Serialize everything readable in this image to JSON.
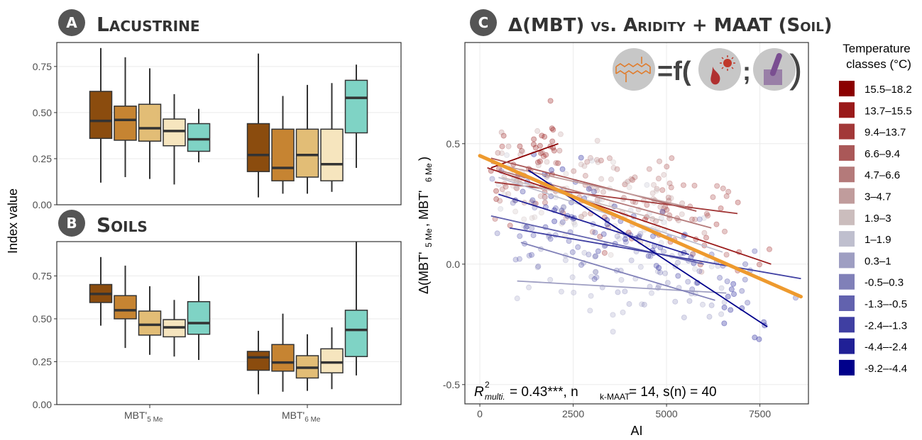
{
  "panels": {
    "A": {
      "badge": "A",
      "title": "Lacustrine"
    },
    "B": {
      "badge": "B",
      "title": "Soils"
    },
    "C": {
      "badge": "C",
      "title": "Δ(MBT) vs. Aridity + MAAT (Soil)"
    }
  },
  "shared_ylabel": "Index value",
  "colors": {
    "box_fills": [
      "#8B4C0E",
      "#C68432",
      "#E2BD76",
      "#F6E5BE",
      "#7FD3C5"
    ],
    "box_stroke": "#333333",
    "frame": "#333333",
    "grid": "#ebebeb",
    "fit_line": "#EE9A2E"
  },
  "chart_data": [
    {
      "id": "A",
      "type": "box",
      "title": "Lacustrine",
      "categories": [
        "MBT'5 Me",
        "MBT'6 Me"
      ],
      "ylim": [
        0,
        0.88
      ],
      "yticks": [
        "0.00",
        "0.25",
        "0.50",
        "0.75"
      ],
      "groups": [
        {
          "category": "MBT'5 Me",
          "boxes": [
            {
              "min": 0.12,
              "q1": 0.36,
              "median": 0.455,
              "q3": 0.615,
              "max": 0.85
            },
            {
              "min": 0.15,
              "q1": 0.35,
              "median": 0.46,
              "q3": 0.535,
              "max": 0.8
            },
            {
              "min": 0.14,
              "q1": 0.345,
              "median": 0.415,
              "q3": 0.545,
              "max": 0.74
            },
            {
              "min": 0.11,
              "q1": 0.32,
              "median": 0.4,
              "q3": 0.465,
              "max": 0.6
            },
            {
              "min": 0.23,
              "q1": 0.29,
              "median": 0.355,
              "q3": 0.44,
              "max": 0.52
            }
          ]
        },
        {
          "category": "MBT'6 Me",
          "boxes": [
            {
              "min": 0.04,
              "q1": 0.18,
              "median": 0.27,
              "q3": 0.44,
              "max": 0.82
            },
            {
              "min": 0.06,
              "q1": 0.13,
              "median": 0.2,
              "q3": 0.41,
              "max": 0.59
            },
            {
              "min": 0.06,
              "q1": 0.15,
              "median": 0.27,
              "q3": 0.41,
              "max": 0.65
            },
            {
              "min": 0.07,
              "q1": 0.13,
              "median": 0.22,
              "q3": 0.41,
              "max": 0.66
            },
            {
              "min": 0.2,
              "q1": 0.39,
              "median": 0.58,
              "q3": 0.675,
              "max": 0.76
            }
          ]
        }
      ]
    },
    {
      "id": "B",
      "type": "box",
      "title": "Soils",
      "categories": [
        "MBT'5 Me",
        "MBT'6 Me"
      ],
      "ylim": [
        0,
        0.95
      ],
      "yticks": [
        "0.00",
        "0.25",
        "0.50",
        "0.75"
      ],
      "groups": [
        {
          "category": "MBT'5 Me",
          "boxes": [
            {
              "min": 0.46,
              "q1": 0.595,
              "median": 0.645,
              "q3": 0.7,
              "max": 0.86
            },
            {
              "min": 0.33,
              "q1": 0.5,
              "median": 0.55,
              "q3": 0.635,
              "max": 0.81
            },
            {
              "min": 0.29,
              "q1": 0.405,
              "median": 0.465,
              "q3": 0.545,
              "max": 0.69
            },
            {
              "min": 0.28,
              "q1": 0.395,
              "median": 0.45,
              "q3": 0.495,
              "max": 0.61
            },
            {
              "min": 0.26,
              "q1": 0.41,
              "median": 0.475,
              "q3": 0.6,
              "max": 0.75
            }
          ]
        },
        {
          "category": "MBT'6 Me",
          "boxes": [
            {
              "min": 0.06,
              "q1": 0.2,
              "median": 0.275,
              "q3": 0.31,
              "max": 0.43
            },
            {
              "min": 0.075,
              "q1": 0.195,
              "median": 0.245,
              "q3": 0.35,
              "max": 0.53
            },
            {
              "min": 0.08,
              "q1": 0.155,
              "median": 0.215,
              "q3": 0.285,
              "max": 0.41
            },
            {
              "min": 0.09,
              "q1": 0.185,
              "median": 0.245,
              "q3": 0.325,
              "max": 0.45
            },
            {
              "min": 0.17,
              "q1": 0.28,
              "median": 0.435,
              "q3": 0.55,
              "max": 0.95
            }
          ]
        }
      ]
    },
    {
      "id": "C",
      "type": "scatter",
      "title": "Δ(MBT) vs. Aridity + MAAT (Soil)",
      "xlabel": "AI",
      "ylabel_main": "Δ(MBT'",
      "ylabel_sub1": "5 Me",
      "ylabel_mid": ", MBT'",
      "ylabel_sub2": "6 Me",
      "ylabel_end": ")",
      "xlim": [
        -400,
        8800
      ],
      "ylim": [
        -0.58,
        0.92
      ],
      "xticks": [
        "0",
        "2500",
        "5000",
        "7500"
      ],
      "yticks": [
        "-0.5",
        "0.0",
        "0.5"
      ],
      "annotation": {
        "r": "R",
        "sup": "2",
        "sub": "multi.",
        "mid": " = 0.43***, n",
        "nsub": "k-MAAT",
        "end": " = 14, s(n) = 40"
      },
      "equation": {
        "eq": "=f(",
        "sep": ";",
        "close": ")"
      },
      "overall_fit": {
        "x": [
          0,
          8600
        ],
        "y": [
          0.45,
          -0.135
        ]
      },
      "legend": {
        "title_line1": "Temperature",
        "title_line2": "classes (°C)",
        "entries": [
          {
            "label": "15.5–18.2",
            "color": "#8B0000"
          },
          {
            "label": "13.7–15.5",
            "color": "#9A1A1A"
          },
          {
            "label": "9.4–13.7",
            "color": "#A23838"
          },
          {
            "label": "6.6–9.4",
            "color": "#AA5858"
          },
          {
            "label": "4.7–6.6",
            "color": "#B47A7A"
          },
          {
            "label": "3–4.7",
            "color": "#C09C9C"
          },
          {
            "label": "1.9–3",
            "color": "#CBBDBD"
          },
          {
            "label": "1–1.9",
            "color": "#BFBFCE"
          },
          {
            "label": "0.3–1",
            "color": "#9E9EC2"
          },
          {
            "label": "-0.5–0.3",
            "color": "#8080B8"
          },
          {
            "label": "-1.3–-0.5",
            "color": "#6262AE"
          },
          {
            "label": "-2.4–-1.3",
            "color": "#3F3FA2"
          },
          {
            "label": "-4.4–-2.4",
            "color": "#202096"
          },
          {
            "label": "-9.2–-4.4",
            "color": "#00008B"
          }
        ]
      },
      "class_fits": [
        {
          "color": "#8B0000",
          "x": [
            300,
            2100
          ],
          "y": [
            0.4,
            0.5
          ]
        },
        {
          "color": "#9A1A1A",
          "x": [
            200,
            7800
          ],
          "y": [
            0.4,
            0.0
          ]
        },
        {
          "color": "#A23838",
          "x": [
            400,
            6900
          ],
          "y": [
            0.34,
            0.21
          ]
        },
        {
          "color": "#AA5858",
          "x": [
            300,
            5800
          ],
          "y": [
            0.44,
            0.22
          ]
        },
        {
          "color": "#B47A7A",
          "x": [
            500,
            6200
          ],
          "y": [
            0.39,
            0.15
          ]
        },
        {
          "color": "#C09C9C",
          "x": [
            300,
            5500
          ],
          "y": [
            0.42,
            0.24
          ]
        },
        {
          "color": "#CBBDBD",
          "x": [
            600,
            4900
          ],
          "y": [
            0.36,
            0.18
          ]
        },
        {
          "color": "#BFBFCE",
          "x": [
            500,
            6500
          ],
          "y": [
            0.36,
            0.05
          ]
        },
        {
          "color": "#9E9EC2",
          "x": [
            1000,
            6600
          ],
          "y": [
            -0.07,
            -0.12
          ]
        },
        {
          "color": "#8080B8",
          "x": [
            1100,
            6300
          ],
          "y": [
            0.09,
            -0.15
          ]
        },
        {
          "color": "#6262AE",
          "x": [
            300,
            6000
          ],
          "y": [
            0.2,
            0.0
          ]
        },
        {
          "color": "#3F3FA2",
          "x": [
            800,
            8600
          ],
          "y": [
            0.15,
            -0.06
          ]
        },
        {
          "color": "#202096",
          "x": [
            500,
            5600
          ],
          "y": [
            0.29,
            0.04
          ]
        },
        {
          "color": "#00008B",
          "x": [
            1300,
            7700
          ],
          "y": [
            0.39,
            -0.26
          ]
        }
      ]
    }
  ]
}
